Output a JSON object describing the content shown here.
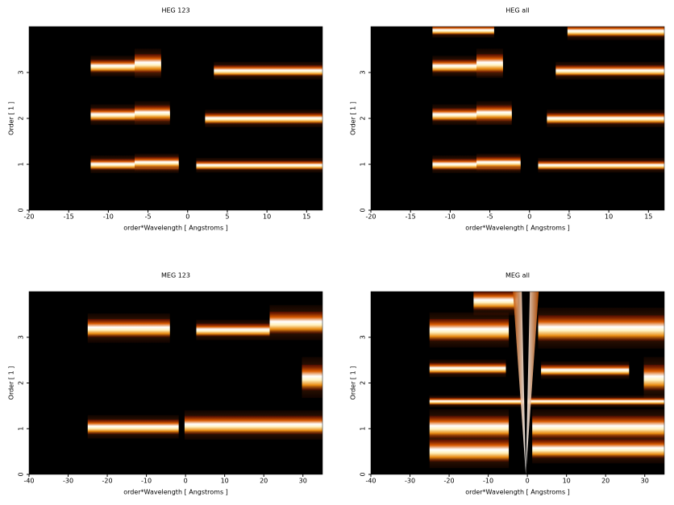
{
  "chart_data": [
    {
      "type": "image",
      "title": "HEG 123",
      "xlabel": "order*Wavelength [ Angstroms ]",
      "ylabel": "Order [ 1 ]",
      "xlim": [
        -20,
        17
      ],
      "ylim": [
        0,
        4
      ],
      "xticks": [
        -20,
        -15,
        -10,
        -5,
        0,
        5,
        10,
        15
      ],
      "yticks": [
        0,
        1,
        2,
        3
      ]
    },
    {
      "type": "image",
      "title": "HEG all",
      "xlabel": "order*Wavelength [ Angstroms ]",
      "ylabel": "Order [ 1 ]",
      "xlim": [
        -20,
        17
      ],
      "ylim": [
        0,
        4
      ],
      "xticks": [
        -20,
        -15,
        -10,
        -5,
        0,
        5,
        10,
        15
      ],
      "yticks": [
        0,
        1,
        2,
        3
      ]
    },
    {
      "type": "image",
      "title": "MEG 123",
      "xlabel": "order*Wavelength [ Angstroms ]",
      "ylabel": "Order [ 1 ]",
      "xlim": [
        -40,
        35
      ],
      "ylim": [
        0,
        4
      ],
      "xticks": [
        -40,
        -30,
        -20,
        -10,
        0,
        10,
        20,
        30
      ],
      "yticks": [
        0,
        1,
        2,
        3
      ]
    },
    {
      "type": "image",
      "title": "MEG all",
      "xlabel": "order*Wavelength [ Angstroms ]",
      "ylabel": "Order [ 1 ]",
      "xlim": [
        -40,
        35
      ],
      "ylim": [
        0,
        4
      ],
      "xticks": [
        -40,
        -30,
        -20,
        -10,
        0,
        10,
        20,
        30
      ],
      "yticks": [
        0,
        1,
        2,
        3
      ]
    }
  ]
}
